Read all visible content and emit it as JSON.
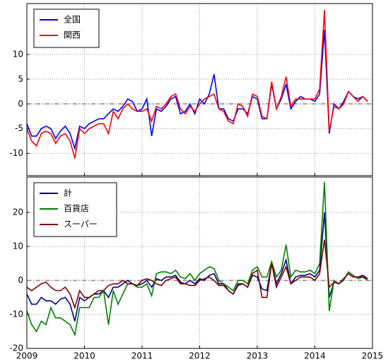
{
  "chart_data": [
    {
      "type": "line",
      "x": [
        2009.0,
        2009.083,
        2009.167,
        2009.25,
        2009.333,
        2009.417,
        2009.5,
        2009.583,
        2009.667,
        2009.75,
        2009.833,
        2009.917,
        2010.0,
        2010.083,
        2010.167,
        2010.25,
        2010.333,
        2010.417,
        2010.5,
        2010.583,
        2010.667,
        2010.75,
        2010.833,
        2010.917,
        2011.0,
        2011.083,
        2011.167,
        2011.25,
        2011.333,
        2011.417,
        2011.5,
        2011.583,
        2011.667,
        2011.75,
        2011.833,
        2011.917,
        2012.0,
        2012.083,
        2012.167,
        2012.25,
        2012.333,
        2012.417,
        2012.5,
        2012.583,
        2012.667,
        2012.75,
        2012.833,
        2012.917,
        2013.0,
        2013.083,
        2013.167,
        2013.25,
        2013.333,
        2013.417,
        2013.5,
        2013.583,
        2013.667,
        2013.75,
        2013.833,
        2013.917,
        2014.0,
        2014.083,
        2014.167,
        2014.25,
        2014.333,
        2014.417,
        2014.5,
        2014.583,
        2014.667,
        2014.75,
        2014.833,
        2014.917
      ],
      "xlim": [
        2009,
        2015
      ],
      "xticks": [
        2009,
        2010,
        2011,
        2012,
        2013,
        2014,
        2015
      ],
      "ylim": [
        -14.5,
        20.3
      ],
      "yticks": [
        -10,
        -5,
        0,
        5,
        10
      ],
      "grid": true,
      "hline": 0,
      "legend": "upper left",
      "series": [
        {
          "name": "全国",
          "color": "#0000ff",
          "values": [
            -4,
            -6.5,
            -6.5,
            -5,
            -4.5,
            -5,
            -7,
            -5.5,
            -4.5,
            -6,
            -9,
            -4.5,
            -5,
            -4,
            -3.5,
            -3,
            -3,
            -2,
            -1,
            -1.5,
            -0.5,
            1,
            0.5,
            -1.5,
            -1,
            1,
            -6.5,
            -1,
            -1.5,
            -0.5,
            1,
            1.5,
            -2,
            -1.5,
            0,
            -2,
            1,
            0,
            2,
            6,
            -1,
            -1,
            -3,
            -3.5,
            -1,
            -1,
            -2,
            1.5,
            1,
            -3,
            -3,
            4,
            -1,
            1,
            4,
            -1,
            0.5,
            1.5,
            1,
            1,
            0.5,
            2,
            15,
            -6,
            0,
            -1,
            0.5,
            2.5,
            1.5,
            1,
            1.5,
            0.5
          ]
        },
        {
          "name": "関西",
          "color": "#ff0000",
          "values": [
            -5,
            -7.5,
            -8.5,
            -6,
            -5.5,
            -6,
            -8,
            -6.5,
            -6,
            -7.5,
            -11,
            -5,
            -6,
            -5,
            -4.5,
            -4,
            -4,
            -6,
            -1.5,
            -3,
            -1,
            0,
            -1,
            -1.5,
            -1.5,
            -1,
            -3.5,
            -0.5,
            -1,
            0,
            1.5,
            2,
            -1,
            -2,
            -0.5,
            -1.5,
            0,
            1,
            1.5,
            2,
            -1,
            -1.5,
            -3.5,
            -4,
            0,
            -0.5,
            -2.5,
            2,
            1.5,
            -2.5,
            -3,
            4.5,
            -1,
            1.5,
            5.5,
            -0.5,
            1,
            1,
            1,
            1,
            1,
            3,
            19,
            -5.5,
            -0.5,
            -1,
            0,
            2.5,
            1.5,
            0.5,
            1.5,
            0.5
          ]
        }
      ]
    },
    {
      "type": "line",
      "x": [
        2009.0,
        2009.083,
        2009.167,
        2009.25,
        2009.333,
        2009.417,
        2009.5,
        2009.583,
        2009.667,
        2009.75,
        2009.833,
        2009.917,
        2010.0,
        2010.083,
        2010.167,
        2010.25,
        2010.333,
        2010.417,
        2010.5,
        2010.583,
        2010.667,
        2010.75,
        2010.833,
        2010.917,
        2011.0,
        2011.083,
        2011.167,
        2011.25,
        2011.333,
        2011.417,
        2011.5,
        2011.583,
        2011.667,
        2011.75,
        2011.833,
        2011.917,
        2012.0,
        2012.083,
        2012.167,
        2012.25,
        2012.333,
        2012.417,
        2012.5,
        2012.583,
        2012.667,
        2012.75,
        2012.833,
        2012.917,
        2013.0,
        2013.083,
        2013.167,
        2013.25,
        2013.333,
        2013.417,
        2013.5,
        2013.583,
        2013.667,
        2013.75,
        2013.833,
        2013.917,
        2014.0,
        2014.083,
        2014.167,
        2014.25,
        2014.333,
        2014.417,
        2014.5,
        2014.583,
        2014.667,
        2014.75,
        2014.833,
        2014.917
      ],
      "xlim": [
        2009,
        2015
      ],
      "xticks": [
        2009,
        2010,
        2011,
        2012,
        2013,
        2014,
        2015
      ],
      "ylim": [
        -20,
        30.4
      ],
      "yticks": [
        -20,
        -10,
        0,
        10,
        20
      ],
      "grid": true,
      "hline": 0,
      "legend": "upper left",
      "series": [
        {
          "name": "計",
          "color": "#000080",
          "values": [
            -4,
            -7,
            -7,
            -5,
            -6,
            -6,
            -7,
            -5.5,
            -5,
            -7,
            -12,
            -5,
            -6,
            -5,
            -4,
            -4,
            -3,
            -5,
            -2,
            -2,
            -1,
            0,
            -1,
            -1.5,
            -1,
            0,
            -2,
            0.5,
            0,
            1,
            1,
            1.5,
            -0.5,
            -1,
            0,
            -1,
            0.5,
            0,
            1.5,
            2,
            -1,
            -1,
            -3,
            -4,
            -1,
            -1,
            -2,
            1.5,
            1,
            -2.5,
            -3,
            5,
            -1,
            2,
            6,
            -1,
            1,
            1.5,
            1.5,
            2,
            1,
            3,
            20,
            -5,
            -0.5,
            -1,
            0.5,
            2,
            1,
            1,
            1.5,
            0.5
          ]
        },
        {
          "name": "百貨店",
          "color": "#008000",
          "values": [
            -9,
            -13,
            -15,
            -12,
            -13,
            -8,
            -11,
            -11,
            -12,
            -13,
            -16,
            -8,
            -8,
            -8,
            -5,
            -5,
            -3,
            -13,
            -3,
            -7,
            -4,
            -1,
            -1,
            -2,
            -2,
            -1,
            -4.5,
            2,
            2.5,
            2.5,
            2,
            3,
            1,
            0.5,
            2,
            0,
            2,
            3,
            4,
            3.5,
            0,
            -1,
            -2,
            -3,
            0,
            0,
            -1,
            3,
            4,
            1,
            1,
            5.5,
            1,
            3,
            10.5,
            1,
            3,
            2.5,
            2.5,
            3,
            2,
            5,
            29,
            -9,
            0,
            -1,
            0,
            2.5,
            1.5,
            0.5,
            1,
            0
          ]
        },
        {
          "name": "スーパー",
          "color": "#800000",
          "values": [
            -2,
            -3,
            -2,
            -1,
            -0.5,
            -2,
            -3,
            -3,
            -2,
            -4,
            -8,
            -3,
            -5,
            -5,
            -4,
            -3,
            -3,
            -1.5,
            -1,
            -1,
            0,
            -1,
            -1,
            -1.5,
            0,
            0.5,
            0,
            -1,
            -1.5,
            0,
            0.5,
            1,
            -1,
            -1,
            -1.5,
            -1.5,
            0,
            0.5,
            1,
            0,
            -1.5,
            -1.5,
            -3,
            -4,
            -1.5,
            -1,
            -2,
            2,
            3,
            -5,
            -5,
            5,
            -2,
            1,
            4,
            -1,
            0,
            1,
            1,
            1,
            0,
            2,
            12,
            -2,
            -0.5,
            -1,
            0.5,
            2,
            1,
            1,
            1,
            0.5
          ]
        }
      ]
    }
  ]
}
